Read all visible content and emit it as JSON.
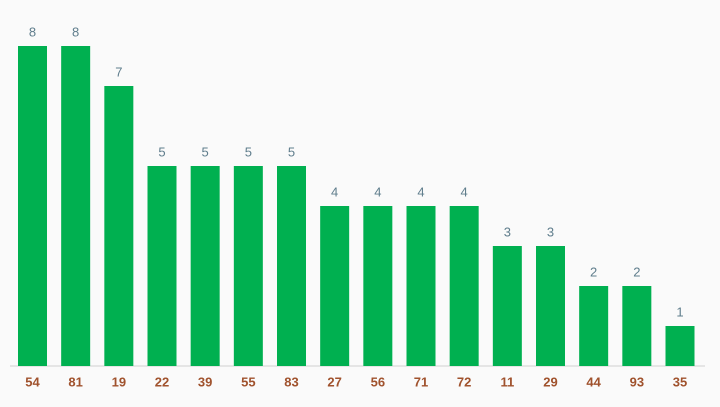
{
  "chart_data": {
    "type": "bar",
    "categories": [
      "54",
      "81",
      "19",
      "22",
      "39",
      "55",
      "83",
      "27",
      "56",
      "71",
      "72",
      "11",
      "29",
      "44",
      "93",
      "35"
    ],
    "values": [
      8,
      8,
      7,
      5,
      5,
      5,
      5,
      4,
      4,
      4,
      4,
      3,
      3,
      2,
      2,
      1
    ],
    "color": "#00b050"
  }
}
